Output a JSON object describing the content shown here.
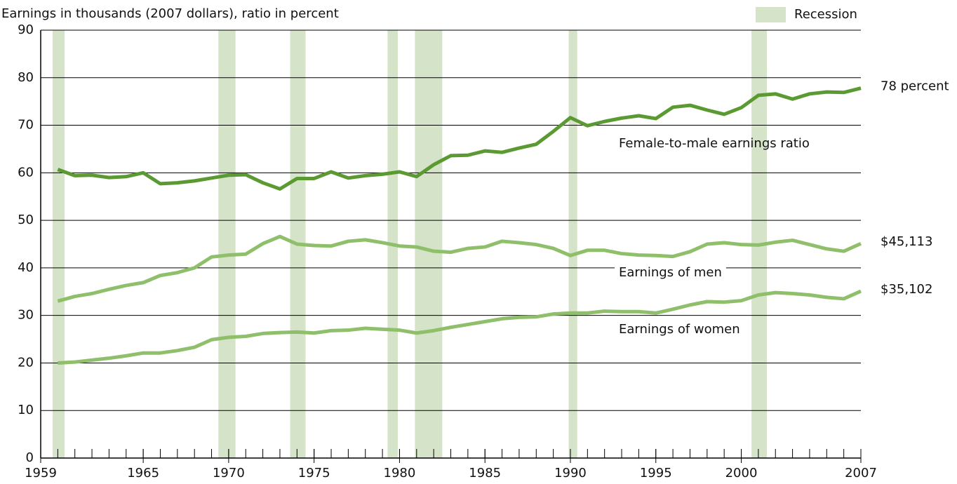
{
  "chart_data": {
    "type": "line",
    "ylabel": "Earnings in thousands (2007 dollars), ratio in percent",
    "x": [
      1960,
      1961,
      1962,
      1963,
      1964,
      1965,
      1966,
      1967,
      1968,
      1969,
      1970,
      1971,
      1972,
      1973,
      1974,
      1975,
      1976,
      1977,
      1978,
      1979,
      1980,
      1981,
      1982,
      1983,
      1984,
      1985,
      1986,
      1987,
      1988,
      1989,
      1990,
      1991,
      1992,
      1993,
      1994,
      1995,
      1996,
      1997,
      1998,
      1999,
      2000,
      2001,
      2002,
      2003,
      2004,
      2005,
      2006,
      2007
    ],
    "series": [
      {
        "name": "Female-to-male earnings ratio",
        "color": "#5b9a32",
        "values": [
          60.7,
          59.4,
          59.5,
          59.0,
          59.2,
          60.0,
          57.7,
          57.9,
          58.3,
          58.9,
          59.5,
          59.6,
          57.9,
          56.6,
          58.8,
          58.8,
          60.2,
          58.9,
          59.4,
          59.7,
          60.2,
          59.2,
          61.7,
          63.6,
          63.7,
          64.6,
          64.3,
          65.2,
          66.0,
          68.7,
          71.6,
          69.9,
          70.8,
          71.5,
          72.0,
          71.4,
          73.8,
          74.2,
          73.2,
          72.3,
          73.7,
          76.3,
          76.6,
          75.5,
          76.6,
          77.0,
          76.9,
          77.8
        ],
        "value_labels": [
          null,
          null,
          null,
          null,
          null,
          null,
          null,
          null,
          null,
          null,
          null,
          null,
          null,
          null,
          null,
          null,
          null,
          null,
          null,
          null,
          null,
          null,
          null,
          null,
          null,
          null,
          null,
          null,
          null,
          null,
          null,
          null,
          null,
          null,
          null,
          null,
          null,
          null,
          null,
          null,
          null,
          null,
          null,
          null,
          null,
          null,
          null,
          "78 percent"
        ]
      },
      {
        "name": "Earnings of men",
        "color": "#8fbf6a",
        "values": [
          33.0,
          34.0,
          34.6,
          35.5,
          36.3,
          36.9,
          38.4,
          39.0,
          40.0,
          42.3,
          42.7,
          42.9,
          45.1,
          46.6,
          45.0,
          44.7,
          44.6,
          45.6,
          45.9,
          45.3,
          44.6,
          44.4,
          43.5,
          43.3,
          44.1,
          44.4,
          45.6,
          45.3,
          44.9,
          44.1,
          42.6,
          43.7,
          43.7,
          43.0,
          42.7,
          42.6,
          42.4,
          43.4,
          45.0,
          45.3,
          44.9,
          44.8,
          45.4,
          45.8,
          44.9,
          44.0,
          43.5,
          45.113
        ],
        "value_labels": [
          null,
          null,
          null,
          null,
          null,
          null,
          null,
          null,
          null,
          null,
          null,
          null,
          null,
          null,
          null,
          null,
          null,
          null,
          null,
          null,
          null,
          null,
          null,
          null,
          null,
          null,
          null,
          null,
          null,
          null,
          null,
          null,
          null,
          null,
          null,
          null,
          null,
          null,
          null,
          null,
          null,
          null,
          null,
          null,
          null,
          null,
          null,
          "$45,113"
        ]
      },
      {
        "name": "Earnings of women",
        "color": "#8fbf6a",
        "values": [
          20.0,
          20.2,
          20.6,
          21.0,
          21.5,
          22.1,
          22.1,
          22.6,
          23.3,
          24.9,
          25.4,
          25.6,
          26.2,
          26.4,
          26.5,
          26.3,
          26.8,
          26.9,
          27.3,
          27.1,
          26.9,
          26.3,
          26.8,
          27.5,
          28.1,
          28.7,
          29.3,
          29.6,
          29.7,
          30.3,
          30.5,
          30.5,
          30.9,
          30.8,
          30.8,
          30.5,
          31.3,
          32.2,
          32.9,
          32.8,
          33.1,
          34.3,
          34.8,
          34.6,
          34.3,
          33.8,
          33.5,
          35.102
        ],
        "value_labels": [
          null,
          null,
          null,
          null,
          null,
          null,
          null,
          null,
          null,
          null,
          null,
          null,
          null,
          null,
          null,
          null,
          null,
          null,
          null,
          null,
          null,
          null,
          null,
          null,
          null,
          null,
          null,
          null,
          null,
          null,
          null,
          null,
          null,
          null,
          null,
          null,
          null,
          null,
          null,
          null,
          null,
          null,
          null,
          null,
          null,
          null,
          null,
          "$35,102"
        ]
      }
    ],
    "recession": {
      "name": "Recession",
      "color": "#d5e3c8",
      "periods": [
        [
          1959.7,
          1960.4
        ],
        [
          1969.4,
          1970.4
        ],
        [
          1973.6,
          1974.5
        ],
        [
          1979.3,
          1979.9
        ],
        [
          1980.9,
          1982.5
        ],
        [
          1989.9,
          1990.4
        ],
        [
          2000.6,
          2001.5
        ]
      ]
    },
    "xlim": [
      1959,
      2007
    ],
    "xticks": [
      1959,
      1965,
      1970,
      1975,
      1980,
      1985,
      1990,
      1995,
      2000,
      2007
    ],
    "ylim": [
      0,
      90
    ],
    "yticks": [
      0,
      10,
      20,
      30,
      40,
      50,
      60,
      70,
      80,
      90
    ],
    "grid": true
  }
}
